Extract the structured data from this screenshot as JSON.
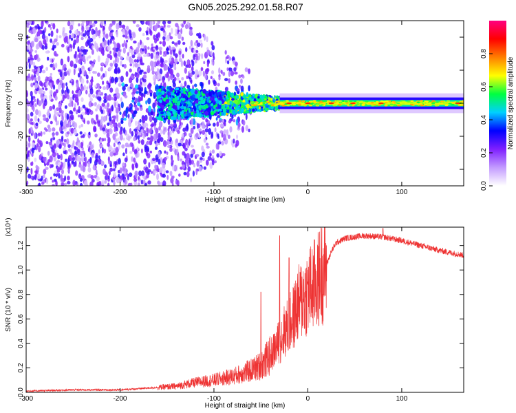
{
  "title": "GN05.2025.292.01.58.R07",
  "chart_data": [
    {
      "type": "heatmap",
      "xlabel": "Height of straight line (km)",
      "ylabel": "Frequency (Hz)",
      "xlim": [
        -300,
        166
      ],
      "ylim": [
        -50,
        50
      ],
      "x_ticks": [
        -300,
        -200,
        -100,
        0,
        100
      ],
      "y_ticks": [
        -40,
        -20,
        0,
        20,
        40
      ],
      "x_tick_labels": [
        "-300",
        "-200",
        "-100",
        "0",
        "100"
      ],
      "y_tick_labels": [
        "-40",
        "-20",
        "0",
        "20",
        "40"
      ],
      "colorbar": {
        "label": "Normalized spectral amplitude",
        "range": [
          0,
          1
        ],
        "ticks": [
          0.0,
          0.2,
          0.4,
          0.6,
          0.8
        ],
        "tick_labels": [
          "0.0",
          "0.2",
          "0.4",
          "0.6",
          "0.8"
        ],
        "colors": [
          "#ffffff",
          "#c39bff",
          "#7f1fff",
          "#0000ff",
          "#00d0ff",
          "#00ff40",
          "#ffff00",
          "#ff7f00",
          "#ff0000",
          "#ff0080"
        ]
      },
      "description_values": {
        "scatter_region_x": [
          -300,
          -60
        ],
        "scatter_region_y": [
          -50,
          50
        ],
        "line_region_x": [
          -60,
          166
        ],
        "line_center_y": 0,
        "peak_x": [
          -20,
          0,
          25,
          48,
          78,
          160
        ]
      }
    },
    {
      "type": "line",
      "xlabel": "Height of straight line (km)",
      "ylabel": "SNR (10 * v/v)",
      "y_multiplier": "(x10⁴)",
      "xlim": [
        -300,
        166
      ],
      "ylim": [
        0,
        1.35
      ],
      "x_ticks": [
        -300,
        -200,
        -100,
        0,
        100
      ],
      "y_ticks": [
        0.0,
        0.2,
        0.4,
        0.6,
        0.8,
        1.0,
        1.2
      ],
      "x_tick_labels": [
        "-300",
        "-200",
        "-100",
        "0",
        "100"
      ],
      "y_tick_labels": [
        "0.0",
        "0.2",
        "0.4",
        "0.6",
        "0.8",
        "1.0",
        "1.2"
      ],
      "series": [
        {
          "color": "#ee3333",
          "x": [
            -300,
            -250,
            -200,
            -160,
            -140,
            -120,
            -100,
            -80,
            -60,
            -50,
            -40,
            -30,
            -25,
            -20,
            -15,
            -10,
            -5,
            0,
            5,
            10,
            15,
            20,
            25,
            30,
            40,
            50,
            60,
            80,
            100,
            120,
            140,
            166
          ],
          "y": [
            0.01,
            0.02,
            0.02,
            0.04,
            0.05,
            0.08,
            0.1,
            0.13,
            0.18,
            0.22,
            0.3,
            0.42,
            0.5,
            0.55,
            0.62,
            0.72,
            0.78,
            0.82,
            0.86,
            0.9,
            0.98,
            1.05,
            1.15,
            1.22,
            1.26,
            1.27,
            1.28,
            1.27,
            1.24,
            1.2,
            1.16,
            1.12
          ],
          "noise_peak_points": [
            [
              -30,
              1.28
            ],
            [
              -50,
              0.82
            ],
            [
              -20,
              1.1
            ],
            [
              80,
              1.34
            ]
          ]
        }
      ]
    }
  ]
}
